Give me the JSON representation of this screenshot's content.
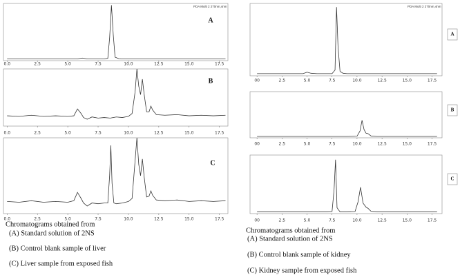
{
  "chart_data": [
    {
      "type": "line",
      "title": "A",
      "annotation": "PDA Multi 2 270nm,4nm",
      "color": "#333",
      "x": [
        0,
        1,
        2,
        3,
        4,
        5,
        5.8,
        6.2,
        6.6,
        7,
        7.5,
        8,
        8.3,
        8.45,
        8.6,
        8.75,
        8.9,
        9.2,
        9.5,
        10,
        11,
        12,
        13,
        14,
        15,
        16,
        17,
        18
      ],
      "values": [
        3,
        3,
        3,
        3,
        3,
        3,
        3,
        4.5,
        3,
        3,
        3,
        3,
        4,
        40,
        97,
        45,
        6,
        3.5,
        3,
        3,
        3,
        3,
        3,
        3,
        3,
        3,
        3,
        3
      ],
      "xlim": [
        -0.3,
        18.2
      ],
      "ylim": [
        0,
        100
      ],
      "xticks": [
        {
          "value": 0,
          "label": "0.0"
        },
        2.5,
        {
          "value": 5,
          "label": "5.0"
        },
        7.5,
        {
          "value": 10,
          "label": "10.0"
        },
        12.5,
        {
          "value": 15,
          "label": "15.0"
        },
        17.5
      ]
    },
    {
      "type": "line",
      "title": "B",
      "color": "#333",
      "x": [
        0,
        1,
        2,
        3,
        4,
        5,
        5.5,
        5.8,
        6.1,
        6.3,
        6.6,
        7,
        7.5,
        8,
        8.5,
        9,
        9.5,
        10,
        10.3,
        10.55,
        10.7,
        10.85,
        11,
        11.15,
        11.3,
        11.5,
        11.7,
        11.85,
        12,
        12.3,
        13,
        14,
        15,
        16,
        17,
        18
      ],
      "values": [
        18,
        17,
        19,
        17,
        18,
        17,
        18,
        30,
        22,
        15,
        12,
        16,
        14,
        15,
        14,
        16,
        15,
        17,
        22,
        60,
        100,
        70,
        55,
        82,
        55,
        25,
        25,
        35,
        28,
        20,
        19,
        20,
        18,
        19,
        18,
        19
      ],
      "xlim": [
        -0.3,
        18.2
      ],
      "ylim": [
        0,
        100
      ],
      "xticks": [
        {
          "value": 0,
          "label": "0.0"
        },
        2.5,
        {
          "value": 5,
          "label": "5.0"
        },
        7.5,
        {
          "value": 10,
          "label": "10.0"
        },
        12.5,
        {
          "value": 15,
          "label": "15.0"
        },
        17.5
      ]
    },
    {
      "type": "line",
      "title": "C",
      "color": "#333",
      "x": [
        0,
        1,
        2,
        3,
        4,
        5,
        5.5,
        5.8,
        6.1,
        6.3,
        6.6,
        7,
        7.5,
        8,
        8.3,
        8.45,
        8.55,
        8.65,
        8.8,
        9,
        9.5,
        10,
        10.3,
        10.55,
        10.7,
        10.85,
        11,
        11.15,
        11.3,
        11.5,
        11.7,
        11.85,
        12,
        12.3,
        13,
        14,
        15,
        16,
        17,
        18
      ],
      "values": [
        16,
        15,
        17,
        15,
        16,
        15,
        17,
        28,
        20,
        14,
        10,
        14,
        13,
        14,
        14,
        50,
        90,
        40,
        14,
        13,
        14,
        16,
        20,
        70,
        100,
        65,
        50,
        72,
        48,
        22,
        23,
        30,
        24,
        18,
        17,
        18,
        16,
        17,
        16,
        17
      ],
      "xlim": [
        -0.3,
        18.2
      ],
      "ylim": [
        0,
        100
      ],
      "xticks": [
        {
          "value": 0,
          "label": "0.0"
        },
        2.5,
        {
          "value": 5,
          "label": "5.0"
        },
        7.5,
        {
          "value": 10,
          "label": "10.0"
        },
        12.5,
        {
          "value": 15,
          "label": "15.0"
        },
        17.5
      ]
    },
    {
      "type": "line",
      "title": "A",
      "annotation": "PDA Multi 2 270nm,4nm",
      "color": "#333",
      "x": [
        0,
        1,
        2,
        3,
        4,
        4.6,
        5,
        5.4,
        6,
        7,
        7.5,
        7.8,
        7.95,
        8.1,
        8.3,
        8.6,
        9,
        10,
        11,
        12,
        13,
        14,
        15,
        16,
        17,
        18
      ],
      "values": [
        3,
        3,
        3,
        3,
        3,
        3,
        5,
        3.5,
        3,
        3,
        3,
        8,
        95,
        40,
        6,
        3.5,
        3,
        3,
        3,
        3,
        3,
        3,
        3,
        3,
        3,
        3
      ],
      "xlim": [
        -0.7,
        18.5
      ],
      "ylim": [
        0,
        100
      ],
      "xticks": [
        {
          "value": 0,
          "label": "00"
        },
        2.5,
        {
          "value": 5,
          "label": "5.0"
        },
        7.5,
        {
          "value": 10,
          "label": "10.0"
        },
        12.5,
        {
          "value": 15,
          "label": "15.0"
        },
        17.5
      ]
    },
    {
      "type": "line",
      "title": "B",
      "color": "#333",
      "x": [
        0,
        2,
        4,
        6,
        8,
        9,
        10,
        10.3,
        10.5,
        10.7,
        10.9,
        11.1,
        11.4,
        12,
        13,
        14,
        15,
        16,
        17,
        18
      ],
      "values": [
        3,
        3,
        3,
        3,
        3,
        3,
        3.5,
        15,
        38,
        18,
        10,
        9,
        4,
        3,
        3,
        3,
        3,
        3,
        3,
        3
      ],
      "xlim": [
        -0.7,
        18.5
      ],
      "ylim": [
        0,
        100
      ],
      "xticks": [
        {
          "value": 0,
          "label": "00"
        },
        2.5,
        {
          "value": 5,
          "label": "5.0"
        },
        7.5,
        {
          "value": 10,
          "label": "10.0"
        },
        12.5,
        {
          "value": 15,
          "label": "15.0"
        },
        17.5
      ]
    },
    {
      "type": "line",
      "title": "C",
      "color": "#333",
      "x": [
        0,
        2,
        4,
        6,
        7,
        7.5,
        7.7,
        7.85,
        8,
        8.3,
        9,
        9.8,
        10.1,
        10.35,
        10.6,
        10.9,
        11.1,
        11.4,
        12,
        13,
        14,
        15,
        16,
        17,
        18
      ],
      "values": [
        3,
        3,
        3,
        3,
        3,
        3.5,
        40,
        92,
        10,
        3,
        3,
        3.5,
        20,
        45,
        18,
        11,
        9,
        4,
        3,
        3,
        3,
        3,
        3,
        3,
        3
      ],
      "xlim": [
        -0.7,
        18.5
      ],
      "ylim": [
        0,
        100
      ],
      "xticks": [
        {
          "value": 0,
          "label": "00"
        },
        2.5,
        {
          "value": 5,
          "label": "5.0"
        },
        7.5,
        {
          "value": 10,
          "label": "10.0"
        },
        12.5,
        {
          "value": 15,
          "label": "15.0"
        },
        17.5
      ]
    }
  ],
  "captions": {
    "left": {
      "heading": "Chromatograms obtained from",
      "items": [
        "(A) Standard solution of 2NS",
        "(B) Control blank sample of liver",
        "(C) Liver sample from exposed fish"
      ]
    },
    "right": {
      "heading": "Chromatograms obtained from",
      "items": [
        "(A) Standard solution of 2NS",
        "(B) Control blank sample of kidney",
        "(C) Kidney sample from exposed fish"
      ]
    }
  }
}
